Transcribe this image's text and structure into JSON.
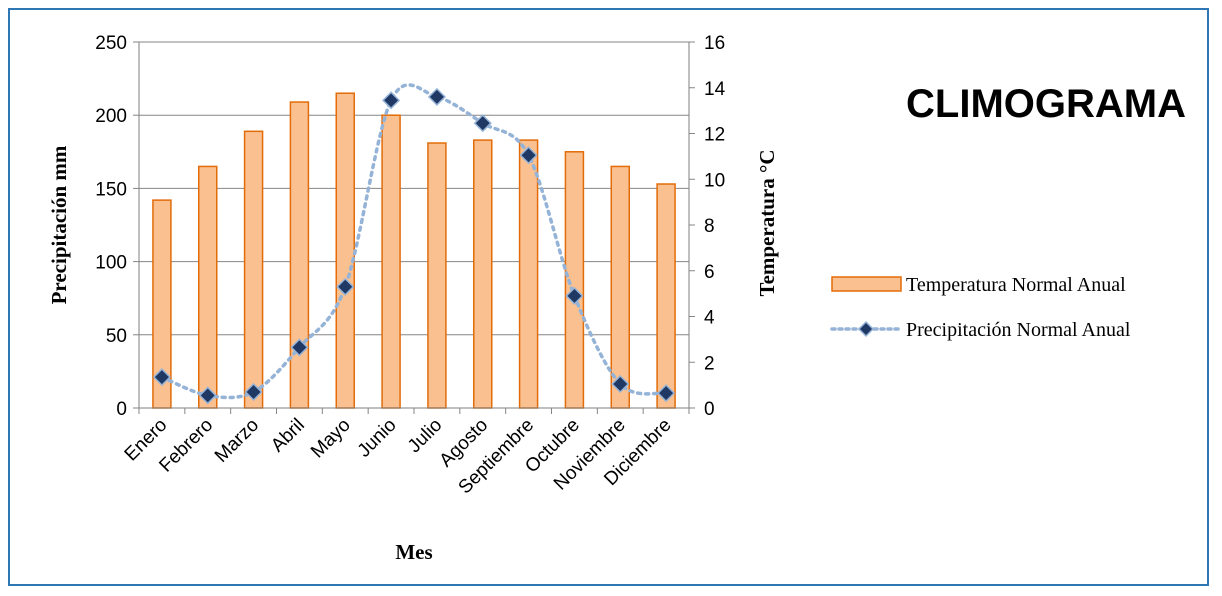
{
  "chart_data": {
    "type": "bar",
    "title": "CLIMOGRAMA",
    "xlabel": "Mes",
    "ylabel": "Precipitación mm",
    "y2label": "Temperatura °C",
    "categories": [
      "Enero",
      "Febrero",
      "Marzo",
      "Abril",
      "Mayo",
      "Junio",
      "Julio",
      "Agosto",
      "Septiembre",
      "Octubre",
      "Noviembre",
      "Diciembre"
    ],
    "ylim": [
      0,
      250
    ],
    "y_ticks": [
      "0",
      "50",
      "100",
      "150",
      "200",
      "250"
    ],
    "y2lim": [
      0,
      16
    ],
    "y2_ticks": [
      "0",
      "2",
      "4",
      "6",
      "8",
      "10",
      "12",
      "14",
      "16"
    ],
    "grid": true,
    "legend_position": "right",
    "series": [
      {
        "name": "Temperatura Normal Anual",
        "type": "bar",
        "axis": "left",
        "color": "#fac090",
        "edge_color": "#e36c09",
        "values": [
          142,
          165,
          189,
          209,
          215,
          200,
          181,
          183,
          183,
          175,
          165,
          153
        ]
      },
      {
        "name": "Precipitación Normal Anual",
        "type": "line",
        "axis": "right",
        "line_style": "dotted",
        "color": "#95b3d7",
        "marker": "diamond",
        "marker_color": "#1f3864",
        "values": [
          1.35,
          0.55,
          0.7,
          2.65,
          5.3,
          13.45,
          13.6,
          12.45,
          11.05,
          4.9,
          1.05,
          0.65
        ]
      }
    ]
  }
}
